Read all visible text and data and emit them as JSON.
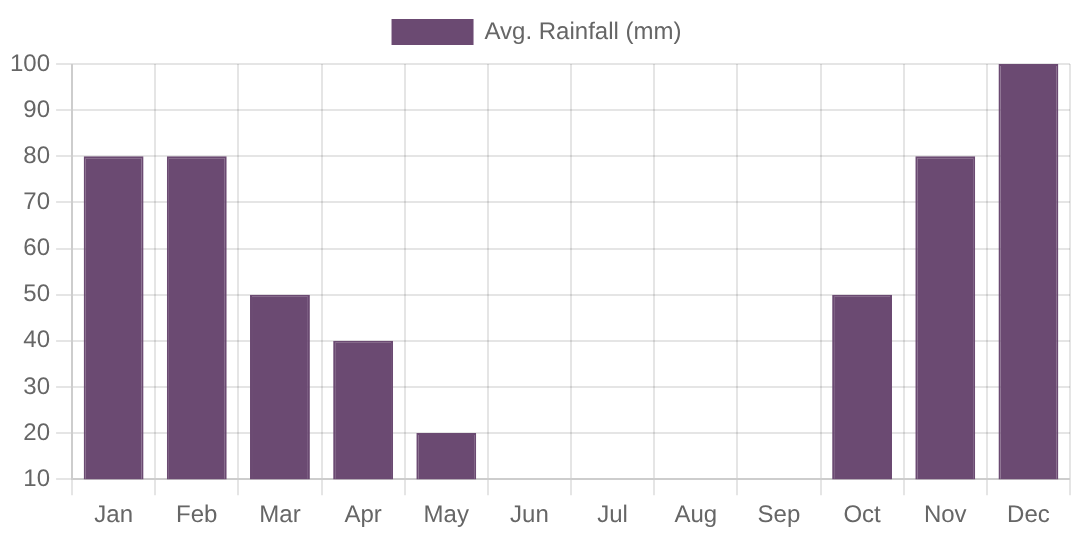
{
  "chart_data": {
    "type": "bar",
    "categories": [
      "Jan",
      "Feb",
      "Mar",
      "Apr",
      "May",
      "Jun",
      "Jul",
      "Aug",
      "Sep",
      "Oct",
      "Nov",
      "Dec"
    ],
    "series": [
      {
        "name": "Avg. Rainfall (mm)",
        "color": "#6b4a72",
        "values": [
          80,
          80,
          50,
          40,
          20,
          null,
          null,
          null,
          null,
          50,
          80,
          100
        ]
      }
    ],
    "ylim": [
      10,
      100
    ],
    "yticks": [
      10,
      20,
      30,
      40,
      50,
      60,
      70,
      80,
      90,
      100
    ],
    "grid": true,
    "legend": "top"
  }
}
